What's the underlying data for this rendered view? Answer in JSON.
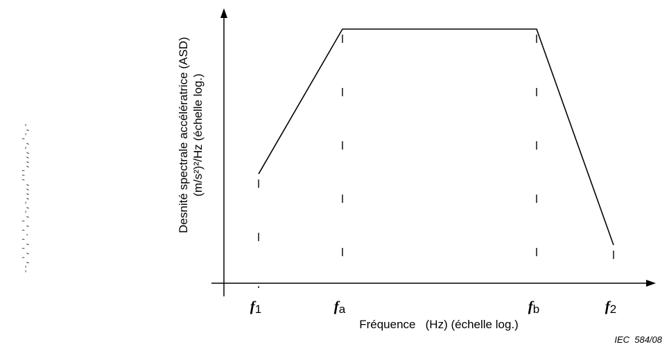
{
  "chart_data": {
    "type": "line",
    "xlabel": "Fréquence   (Hz) (échelle log.)",
    "ylabel_line1": "Desnité spectrale accélératrice (ASD)",
    "ylabel_line2": "(m/s²)²/Hz (échelle log.)",
    "x_scale": "log",
    "y_scale": "log",
    "grid": false,
    "tick_labels": [
      {
        "main": "f",
        "sub": "1"
      },
      {
        "main": "f",
        "sub": "a"
      },
      {
        "main": "f",
        "sub": "b"
      },
      {
        "main": "f",
        "sub": "2"
      }
    ],
    "profile": {
      "x": [
        0,
        1,
        2,
        3
      ],
      "y": [
        0.43,
        1.0,
        1.0,
        0.15
      ]
    }
  },
  "figure_ref": "IEC  584/08",
  "margin_mark": "--,',','.',',-,-,,,,''',,,,-,'-,-"
}
